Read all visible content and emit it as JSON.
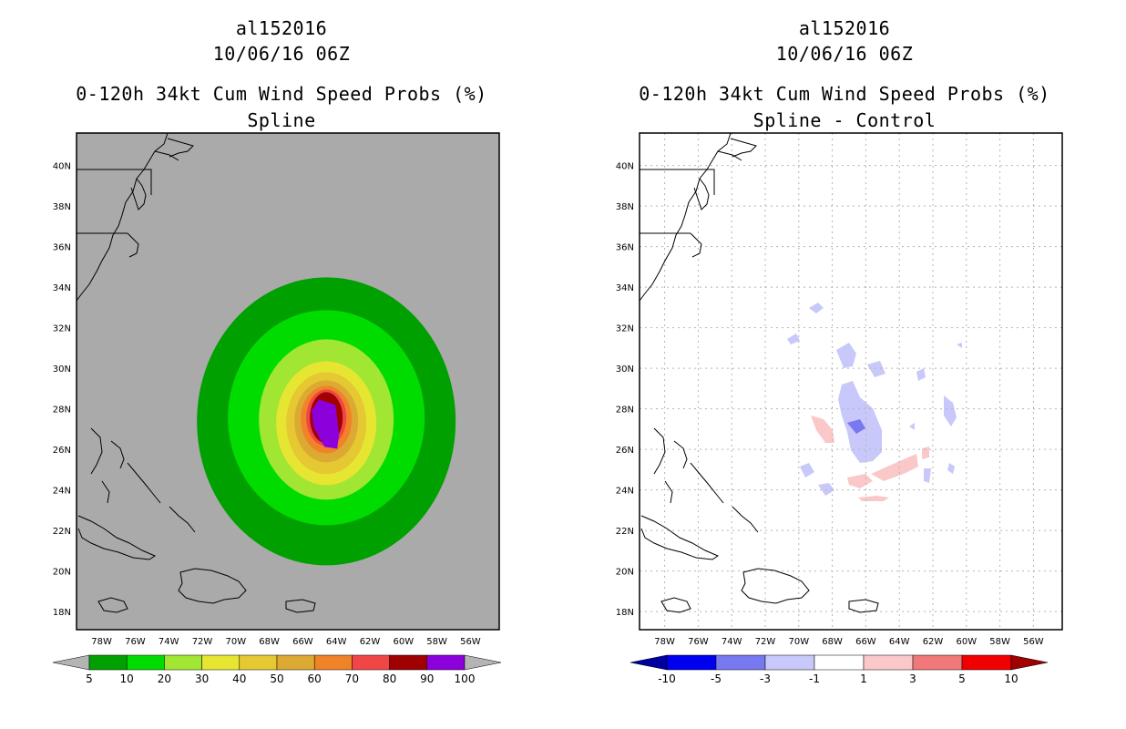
{
  "figure": {
    "panels": [
      {
        "storm_id": "al152016",
        "datetime": "10/06/16 06Z",
        "product": "0-120h 34kt Cum Wind Speed Probs (%)",
        "subtitle": "Spline",
        "background": "#aaaaaa",
        "colorbar": {
          "labels": [
            "5",
            "10",
            "20",
            "30",
            "40",
            "50",
            "60",
            "70",
            "80",
            "90",
            "100"
          ],
          "colors": [
            "#00a000",
            "#00dc00",
            "#a0e632",
            "#e6e632",
            "#e6c832",
            "#dcaa32",
            "#f08228",
            "#f04646",
            "#a00000",
            "#8c00dc"
          ],
          "end_low": "#b4b4b4",
          "end_high": "#b4b4b4"
        }
      },
      {
        "storm_id": "al152016",
        "datetime": "10/06/16 06Z",
        "product": "0-120h 34kt Cum Wind Speed Probs (%)",
        "subtitle": "Spline - Control",
        "background": "#ffffff",
        "colorbar": {
          "labels": [
            "-10",
            "-5",
            "-3",
            "-1",
            "1",
            "3",
            "5",
            "10"
          ],
          "colors": [
            "#0000f0",
            "#7878f0",
            "#c8c8fa",
            "#ffffff",
            "#fac8c8",
            "#f07878",
            "#f00000"
          ],
          "end_low": "#0000a0",
          "end_high": "#a00000"
        }
      }
    ],
    "axes": {
      "lat_labels": [
        "40N",
        "38N",
        "36N",
        "34N",
        "32N",
        "30N",
        "28N",
        "26N",
        "24N",
        "22N",
        "20N",
        "18N"
      ],
      "lon_labels": [
        "78W",
        "76W",
        "74W",
        "72W",
        "70W",
        "68W",
        "66W",
        "64W",
        "62W",
        "60W",
        "58W",
        "56W"
      ]
    }
  }
}
